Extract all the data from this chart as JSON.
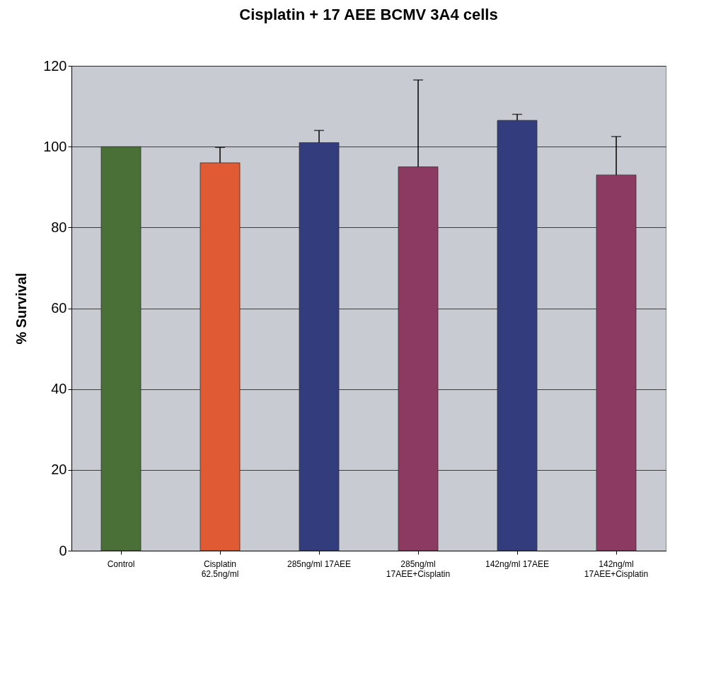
{
  "chart_data": {
    "type": "bar",
    "title": "Cisplatin + 17 AEE BCMV 3A4 cells",
    "ylabel": "% Survival",
    "categories": [
      "Control",
      "Cisplatin\n62.5ng/ml",
      "285ng/ml 17AEE",
      "285ng/ml\n17AEE+Cisplatin",
      "142ng/ml 17AEE",
      "142ng/ml\n17AEE+Cisplatin"
    ],
    "values": [
      100,
      96,
      101,
      95,
      106.5,
      93
    ],
    "colors": [
      "#4a7038",
      "#e05a33",
      "#333d7e",
      "#8c3a62",
      "#333d7e",
      "#8c3a62"
    ],
    "errors": [
      null,
      [
        96,
        99.8
      ],
      [
        101,
        104
      ],
      [
        95,
        116.5
      ],
      [
        106.5,
        108
      ],
      [
        93,
        102.5
      ]
    ],
    "ylim": [
      0,
      120
    ],
    "yticks": [
      0,
      20,
      40,
      60,
      80,
      100,
      120
    ],
    "grid": "y"
  }
}
